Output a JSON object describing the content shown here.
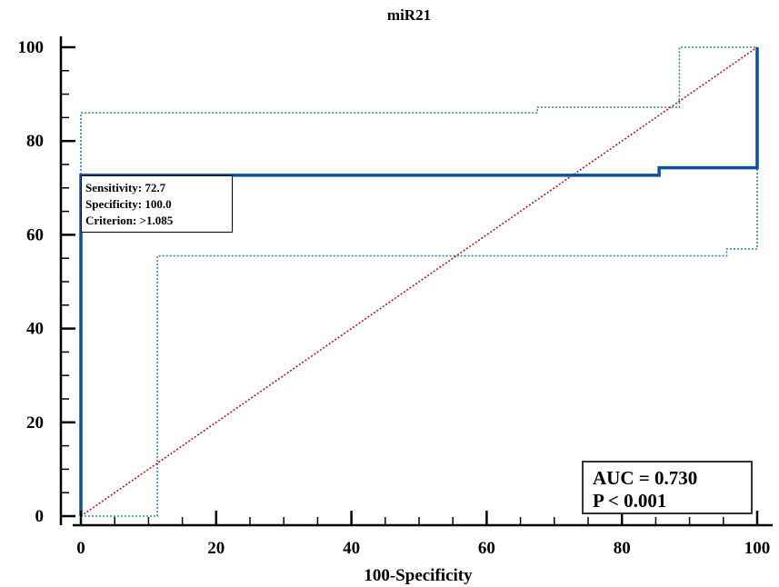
{
  "chart_data": {
    "type": "line",
    "title": "miR21",
    "xlabel": "100-Specificity",
    "ylabel": "",
    "xlim": [
      0,
      100
    ],
    "ylim": [
      0,
      100
    ],
    "x_ticks": [
      "0",
      "20",
      "40",
      "60",
      "80",
      "100"
    ],
    "y_ticks": [
      "0",
      "20",
      "40",
      "60",
      "80",
      "100"
    ],
    "grid": false,
    "colors": {
      "roc": "#0d4f9a",
      "ci": "#2f7fb8",
      "reference": "#b21a1a"
    },
    "series": [
      {
        "key": "roc",
        "style": "solid",
        "points": [
          [
            0,
            0
          ],
          [
            0,
            72.7
          ],
          [
            85.5,
            72.7
          ],
          [
            85.5,
            74.3
          ],
          [
            100,
            74.3
          ],
          [
            100,
            100
          ]
        ]
      },
      {
        "key": "ci_upper",
        "style": "dotted",
        "points": [
          [
            0,
            0
          ],
          [
            0,
            86
          ],
          [
            67.5,
            86
          ],
          [
            67.5,
            87.2
          ],
          [
            88.5,
            87.2
          ],
          [
            88.5,
            100
          ],
          [
            100,
            100
          ]
        ]
      },
      {
        "key": "ci_lower",
        "style": "dotted",
        "points": [
          [
            0,
            0
          ],
          [
            11.3,
            0
          ],
          [
            11.3,
            55.5
          ],
          [
            95.5,
            55.5
          ],
          [
            95.5,
            57
          ],
          [
            100,
            57
          ],
          [
            100,
            100
          ]
        ]
      },
      {
        "key": "reference",
        "style": "dotted",
        "points": [
          [
            0,
            0
          ],
          [
            100,
            100
          ]
        ]
      }
    ],
    "criterion_box": {
      "lines": [
        "Sensitivity: 72.7",
        "Specificity: 100.0",
        "Criterion: >1.085"
      ]
    },
    "stats_box": {
      "lines": [
        "AUC = 0.730",
        "P < 0.001"
      ]
    }
  }
}
